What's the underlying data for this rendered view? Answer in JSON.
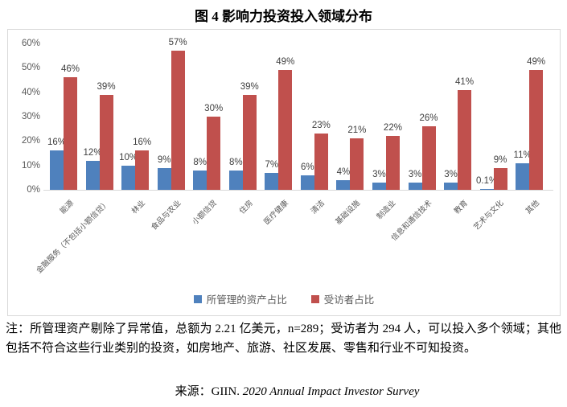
{
  "title": "图 4 影响力投资投入领域分布",
  "chart_data": {
    "type": "bar",
    "categories": [
      "能源",
      "金融服务（不包括小额信贷）",
      "林业",
      "食品与农业",
      "小额信贷",
      "住房",
      "医疗健康",
      "清洁",
      "基础设施",
      "制造业",
      "信息和通信技术",
      "教育",
      "艺术与文化",
      "其他"
    ],
    "series": [
      {
        "name": "所管理的资产占比",
        "color": "#4F81BD",
        "values": [
          16,
          12,
          10,
          9,
          8,
          8,
          7,
          6,
          4,
          3,
          3,
          3,
          0.1,
          11
        ],
        "labels": [
          "16%",
          "12%",
          "10%",
          "9%",
          "8%",
          "8%",
          "7%",
          "6%",
          "4%",
          "3%",
          "3%",
          "3%",
          "0.1%",
          "11%"
        ]
      },
      {
        "name": "受访者占比",
        "color": "#C0504D",
        "values": [
          46,
          39,
          16,
          57,
          30,
          39,
          49,
          23,
          21,
          22,
          26,
          41,
          9,
          49
        ],
        "labels": [
          "46%",
          "39%",
          "16%",
          "57%",
          "30%",
          "39%",
          "49%",
          "23%",
          "21%",
          "22%",
          "26%",
          "41%",
          "9%",
          "49%"
        ]
      }
    ],
    "ylim": [
      0,
      60
    ],
    "yticks": [
      "0%",
      "10%",
      "20%",
      "30%",
      "40%",
      "50%",
      "60%"
    ],
    "grid": false,
    "legend_position": "bottom"
  },
  "note": "注：所管理资产剔除了异常值，总额为 2.21 亿美元，n=289；受访者为 294 人，可以投入多个领域；其他包括不符合这些行业类别的投资，如房地产、旅游、社区发展、零售和行业不可知投资。",
  "source": {
    "prefix": "来源：GIIN. ",
    "title": "2020 Annual Impact Investor Survey"
  }
}
